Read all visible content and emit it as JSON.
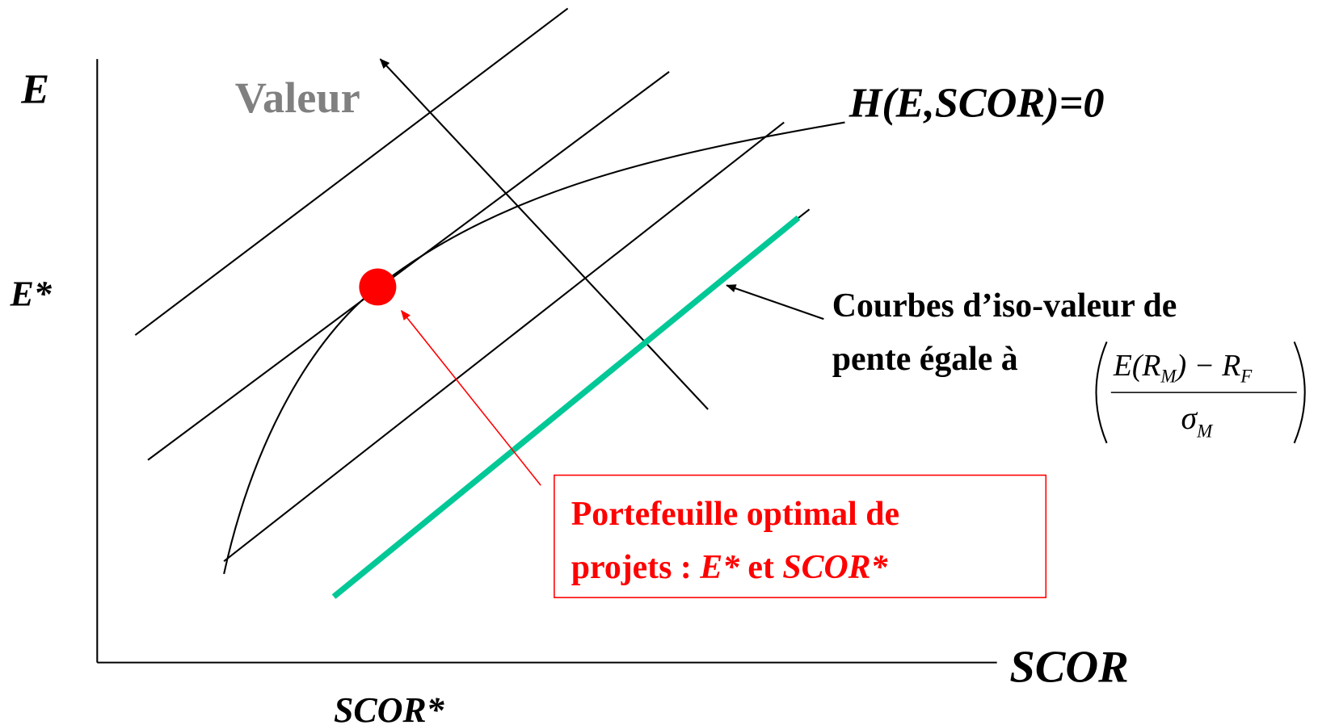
{
  "labels": {
    "y_axis": "E",
    "y_marker": "E*",
    "x_axis": "SCOR",
    "x_marker": "SCOR*",
    "direction": "Valeur",
    "curve": "H(E,SCOR)=0"
  },
  "annotation": {
    "lines": [
      "Courbes d’iso-valeur de",
      "pente égale à"
    ],
    "formula": {
      "numerator": [
        "E(R",
        "M",
        ") − R",
        "F"
      ],
      "denominator": [
        "σ",
        "M"
      ]
    }
  },
  "callout": {
    "line1": "Portefeuille optimal de",
    "line2": [
      "projets : ",
      "E*",
      " et ",
      "SCOR*"
    ]
  }
}
